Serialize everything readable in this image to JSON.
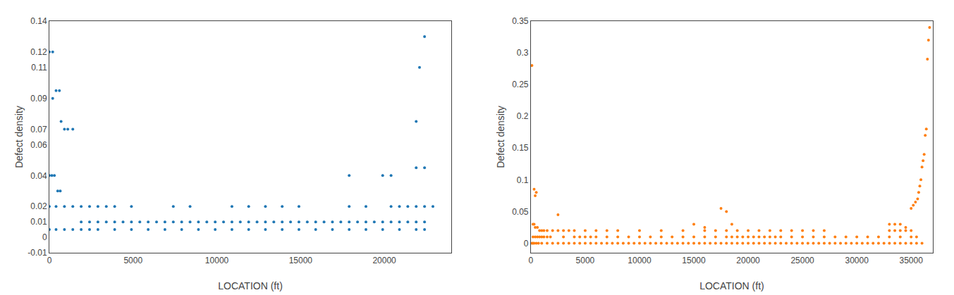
{
  "chart_data": [
    {
      "type": "scatter",
      "xlabel": "LOCATION (ft)",
      "ylabel": "Defect density",
      "xlim": [
        0,
        24000
      ],
      "ylim": [
        -0.01,
        0.14
      ],
      "xticks": [
        0,
        5000,
        10000,
        15000,
        20000
      ],
      "yticks": [
        -0.01,
        0,
        0.01,
        0.02,
        0.04,
        0.06,
        0.07,
        0.09,
        0.11,
        0.12,
        0.14
      ],
      "grid": false,
      "x": [
        0,
        200,
        400,
        600,
        200,
        700,
        900,
        1100,
        1400,
        0,
        150,
        300,
        500,
        650,
        0,
        400,
        900,
        1400,
        1900,
        2400,
        2900,
        3400,
        3900,
        4900,
        7400,
        8400,
        10900,
        11900,
        12900,
        13900,
        14900,
        17900,
        18900,
        20400,
        20900,
        21400,
        21900,
        22400,
        22900,
        1900,
        2400,
        2900,
        3400,
        3900,
        4400,
        4900,
        5400,
        5900,
        6400,
        6900,
        7400,
        7900,
        8400,
        8900,
        9400,
        9900,
        10400,
        10900,
        11400,
        11900,
        12400,
        12900,
        13400,
        13900,
        14400,
        14900,
        15400,
        15900,
        16400,
        16900,
        17400,
        17900,
        18400,
        18900,
        19400,
        19900,
        20400,
        20900,
        21400,
        21900,
        22400,
        2900,
        3900,
        1900,
        2400,
        4900,
        5900,
        6900,
        7900,
        8900,
        9900,
        10900,
        11900,
        12900,
        13900,
        14900,
        15900,
        16900,
        17900,
        18900,
        19900,
        20900,
        21900,
        22400,
        900,
        1400,
        0,
        400,
        17900,
        19900,
        20400,
        21900,
        22100,
        22400,
        21900,
        22400
      ],
      "values": [
        0.12,
        0.12,
        0.095,
        0.095,
        0.09,
        0.075,
        0.07,
        0.07,
        0.07,
        0.04,
        0.04,
        0.04,
        0.03,
        0.03,
        0.02,
        0.02,
        0.02,
        0.02,
        0.02,
        0.02,
        0.02,
        0.02,
        0.02,
        0.02,
        0.02,
        0.02,
        0.02,
        0.02,
        0.02,
        0.02,
        0.02,
        0.02,
        0.02,
        0.02,
        0.02,
        0.02,
        0.02,
        0.02,
        0.02,
        0.01,
        0.01,
        0.01,
        0.01,
        0.01,
        0.01,
        0.01,
        0.01,
        0.01,
        0.01,
        0.01,
        0.01,
        0.01,
        0.01,
        0.01,
        0.01,
        0.01,
        0.01,
        0.01,
        0.01,
        0.01,
        0.01,
        0.01,
        0.01,
        0.01,
        0.01,
        0.01,
        0.01,
        0.01,
        0.01,
        0.01,
        0.01,
        0.01,
        0.01,
        0.01,
        0.01,
        0.01,
        0.01,
        0.01,
        0.01,
        0.01,
        0.01,
        0.005,
        0.005,
        0.005,
        0.005,
        0.005,
        0.005,
        0.005,
        0.005,
        0.005,
        0.005,
        0.005,
        0.005,
        0.005,
        0.005,
        0.005,
        0.005,
        0.005,
        0.005,
        0.005,
        0.005,
        0.005,
        0.005,
        0.005,
        0.005,
        0.005,
        0.005,
        0.005,
        0.04,
        0.04,
        0.04,
        0.075,
        0.11,
        0.13,
        0.045,
        0.045
      ]
    },
    {
      "type": "scatter",
      "xlabel": "LOCATION (ft)",
      "ylabel": "Defect density",
      "xlim": [
        0,
        37000
      ],
      "ylim": [
        -0.015,
        0.35
      ],
      "xticks": [
        0,
        5000,
        10000,
        15000,
        20000,
        25000,
        30000,
        35000
      ],
      "yticks": [
        0,
        0.05,
        0.1,
        0.15,
        0.2,
        0.25,
        0.3,
        0.35
      ],
      "grid": false,
      "x": [
        100,
        300,
        400,
        500,
        200,
        300,
        400,
        600,
        800,
        1000,
        1200,
        1500,
        200,
        400,
        600,
        800,
        1000,
        1200,
        1500,
        1800,
        100,
        200,
        300,
        500,
        700,
        1000,
        1500,
        2000,
        2500,
        3000,
        3500,
        4000,
        4500,
        5000,
        5500,
        6000,
        6500,
        7000,
        7500,
        8000,
        8500,
        9000,
        9500,
        10000,
        10500,
        11000,
        11500,
        12000,
        12500,
        13000,
        13500,
        14000,
        14500,
        15000,
        15500,
        16000,
        16500,
        17000,
        17500,
        18000,
        18500,
        19000,
        19500,
        20000,
        20500,
        21000,
        21500,
        22000,
        22500,
        23000,
        23500,
        24000,
        24500,
        25000,
        25500,
        26000,
        26500,
        27000,
        27500,
        28000,
        28500,
        29000,
        29500,
        30000,
        30500,
        31000,
        31500,
        32000,
        32500,
        33000,
        33500,
        34000,
        34500,
        35000,
        35500,
        36000,
        2500,
        3000,
        4000,
        4500,
        5000,
        5500,
        6000,
        7000,
        8000,
        9000,
        10000,
        11000,
        12000,
        13000,
        14000,
        15000,
        16000,
        17000,
        18000,
        18500,
        19000,
        19500,
        20000,
        20500,
        21000,
        21500,
        22000,
        22500,
        23000,
        24000,
        25000,
        26000,
        27000,
        28000,
        29000,
        30000,
        31000,
        32000,
        33000,
        34000,
        35000,
        35500,
        2000,
        2500,
        3000,
        3500,
        4000,
        5000,
        6000,
        7000,
        8000,
        10000,
        12000,
        14000,
        16000,
        18000,
        19000,
        20000,
        21000,
        22000,
        23000,
        24000,
        25000,
        26000,
        27000,
        33000,
        33500,
        34000,
        34500,
        35000,
        17500,
        18000,
        18500,
        15000,
        16000,
        17000,
        35000,
        35200,
        35400,
        35600,
        35700,
        35800,
        35900,
        36000,
        36100,
        36200,
        36300,
        36400,
        36500,
        36600,
        36700,
        33000,
        33500,
        34000,
        34500
      ],
      "values": [
        0.28,
        0.085,
        0.075,
        0.08,
        0.03,
        0.03,
        0.025,
        0.025,
        0.02,
        0.02,
        0.02,
        0.02,
        0.01,
        0.01,
        0.01,
        0.01,
        0.01,
        0.01,
        0.01,
        0.01,
        0.0,
        0.0,
        0.0,
        0.0,
        0.0,
        0.0,
        0.0,
        0.0,
        0.0,
        0.0,
        0.0,
        0.0,
        0.0,
        0.0,
        0.0,
        0.0,
        0.0,
        0.0,
        0.0,
        0.0,
        0.0,
        0.0,
        0.0,
        0.0,
        0.0,
        0.0,
        0.0,
        0.0,
        0.0,
        0.0,
        0.0,
        0.0,
        0.0,
        0.0,
        0.0,
        0.0,
        0.0,
        0.0,
        0.0,
        0.0,
        0.0,
        0.0,
        0.0,
        0.0,
        0.0,
        0.0,
        0.0,
        0.0,
        0.0,
        0.0,
        0.0,
        0.0,
        0.0,
        0.0,
        0.0,
        0.0,
        0.0,
        0.0,
        0.0,
        0.0,
        0.0,
        0.0,
        0.0,
        0.0,
        0.0,
        0.0,
        0.0,
        0.0,
        0.0,
        0.0,
        0.0,
        0.0,
        0.0,
        0.0,
        0.0,
        0.0,
        0.045,
        0.01,
        0.01,
        0.01,
        0.01,
        0.01,
        0.01,
        0.01,
        0.01,
        0.01,
        0.01,
        0.01,
        0.01,
        0.01,
        0.01,
        0.01,
        0.01,
        0.01,
        0.01,
        0.01,
        0.01,
        0.01,
        0.01,
        0.01,
        0.01,
        0.01,
        0.01,
        0.01,
        0.01,
        0.01,
        0.01,
        0.01,
        0.01,
        0.01,
        0.01,
        0.01,
        0.01,
        0.01,
        0.01,
        0.01,
        0.01,
        0.01,
        0.02,
        0.02,
        0.02,
        0.02,
        0.02,
        0.02,
        0.02,
        0.02,
        0.02,
        0.02,
        0.02,
        0.02,
        0.02,
        0.02,
        0.02,
        0.02,
        0.02,
        0.02,
        0.02,
        0.02,
        0.02,
        0.02,
        0.02,
        0.02,
        0.02,
        0.02,
        0.02,
        0.02,
        0.055,
        0.05,
        0.03,
        0.03,
        0.025,
        0.02,
        0.055,
        0.06,
        0.065,
        0.07,
        0.08,
        0.09,
        0.1,
        0.12,
        0.13,
        0.14,
        0.17,
        0.18,
        0.29,
        0.32,
        0.34,
        0.03,
        0.03,
        0.03,
        0.025
      ]
    }
  ]
}
